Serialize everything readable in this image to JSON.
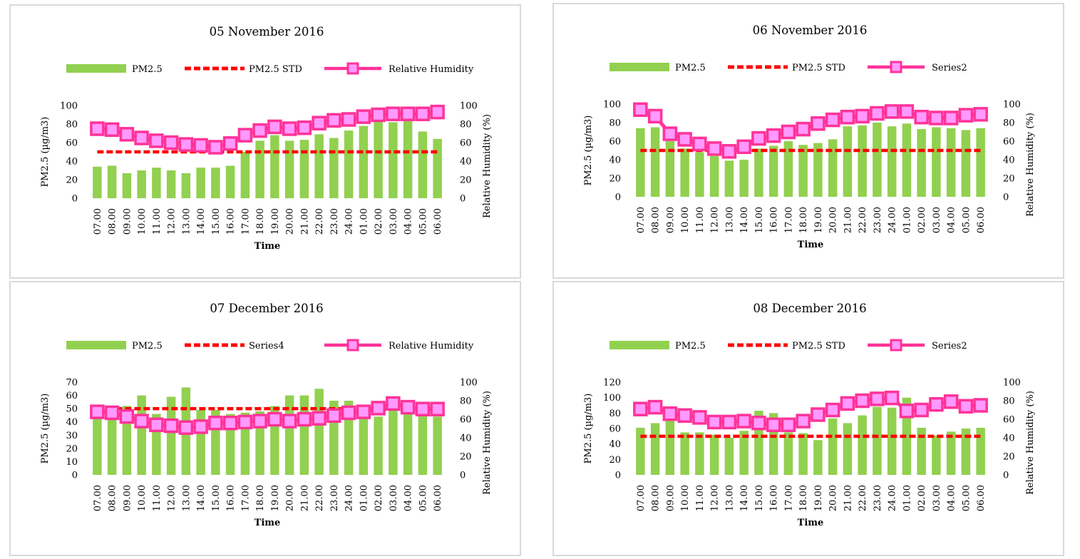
{
  "colors": {
    "bar": "#92d050",
    "std": "#ff0000",
    "humidity_line": "#ff3399",
    "humidity_marker_fill": "#ff99ff",
    "panel_border": "#d9d9d9"
  },
  "chart_data": [
    {
      "type": "bar",
      "title": "05 November 2016",
      "xlabel": "Time",
      "ylabel": "PM2.5 (µg/m3)",
      "y2label": "Relative Humidity (%)",
      "ylim": [
        0,
        100
      ],
      "yticks": [
        0,
        20,
        40,
        60,
        80,
        100
      ],
      "y2lim": [
        0,
        100
      ],
      "y2ticks": [
        0,
        20,
        40,
        60,
        80,
        100
      ],
      "legend_position": "top",
      "categories": [
        "07.00",
        "08.00",
        "09.00",
        "10.00",
        "11.00",
        "12.00",
        "13.00",
        "14.00",
        "15.00",
        "16.00",
        "17.00",
        "18.00",
        "19.00",
        "20.00",
        "21.00",
        "22.00",
        "23.00",
        "24.00",
        "01.00",
        "02.00",
        "03.00",
        "04.00",
        "05.00",
        "06.00"
      ],
      "series": [
        {
          "name": "PM2.5",
          "kind": "bar",
          "axis": "left",
          "values": [
            34,
            35,
            27,
            30,
            33,
            30,
            27,
            33,
            33,
            35,
            50,
            62,
            68,
            62,
            63,
            69,
            65,
            73,
            78,
            83,
            82,
            84,
            72,
            64
          ]
        },
        {
          "name": "PM2.5 STD",
          "kind": "dashed-line",
          "axis": "left",
          "values": [
            50,
            50,
            50,
            50,
            50,
            50,
            50,
            50,
            50,
            50,
            50,
            50,
            50,
            50,
            50,
            50,
            50,
            50,
            50,
            50,
            50,
            50,
            50,
            50
          ]
        },
        {
          "name": "Relative Humidity",
          "kind": "line-marker",
          "axis": "right",
          "values": [
            75,
            74,
            69,
            65,
            62,
            60,
            58,
            57,
            55,
            59,
            68,
            73,
            77,
            75,
            76,
            81,
            84,
            85,
            88,
            90,
            91,
            91,
            91,
            93
          ]
        }
      ]
    },
    {
      "type": "bar",
      "title": "06 November 2016",
      "xlabel": "Time",
      "ylabel": "PM2.5 (µg/m3)",
      "y2label": "Relative Humidity (%)",
      "ylim": [
        0,
        100
      ],
      "yticks": [
        0,
        20,
        40,
        60,
        80,
        100
      ],
      "y2lim": [
        0,
        100
      ],
      "y2ticks": [
        0,
        20,
        40,
        60,
        80,
        100
      ],
      "legend_position": "top",
      "categories": [
        "07.00",
        "08.00",
        "09.00",
        "10.00",
        "11.00",
        "12.00",
        "13.00",
        "14.00",
        "15.00",
        "16.00",
        "17.00",
        "18.00",
        "19.00",
        "20.00",
        "21.00",
        "22.00",
        "23.00",
        "24.00",
        "01.00",
        "02.00",
        "03.00",
        "04.00",
        "05.00",
        "06.00"
      ],
      "series": [
        {
          "name": "PM2.5",
          "kind": "bar",
          "axis": "left",
          "values": [
            74,
            75,
            60,
            52,
            48,
            44,
            39,
            40,
            52,
            55,
            60,
            56,
            58,
            62,
            76,
            77,
            80,
            76,
            79,
            73,
            75,
            74,
            72,
            74
          ]
        },
        {
          "name": "PM2.5 STD",
          "kind": "dashed-line",
          "axis": "left",
          "values": [
            50,
            50,
            50,
            50,
            50,
            50,
            50,
            50,
            50,
            50,
            50,
            50,
            50,
            50,
            50,
            50,
            50,
            50,
            50,
            50,
            50,
            50,
            50,
            50
          ]
        },
        {
          "name": "Series2",
          "kind": "line-marker",
          "axis": "right",
          "values": [
            94,
            87,
            68,
            62,
            57,
            52,
            49,
            54,
            63,
            66,
            70,
            73,
            79,
            83,
            86,
            87,
            90,
            92,
            92,
            86,
            85,
            85,
            88,
            89
          ]
        }
      ]
    },
    {
      "type": "bar",
      "title": "07 December 2016",
      "xlabel": "Time",
      "ylabel": "PM2.5 (µg/m3)",
      "y2label": "Relative Humidity (%)",
      "ylim": [
        0,
        70
      ],
      "yticks": [
        0,
        10,
        20,
        30,
        40,
        50,
        60,
        70
      ],
      "y2lim": [
        0,
        100
      ],
      "y2ticks": [
        0,
        20,
        40,
        60,
        80,
        100
      ],
      "legend_position": "top",
      "categories": [
        "07.00",
        "08.00",
        "09.00",
        "10.00",
        "11.00",
        "12.00",
        "13.00",
        "14.00",
        "15.00",
        "16.00",
        "17.00",
        "18.00",
        "19.00",
        "20.00",
        "21.00",
        "22.00",
        "23.00",
        "24.00",
        "01.00",
        "02.00",
        "03.00",
        "04.00",
        "05.00",
        "06.00"
      ],
      "series": [
        {
          "name": "PM2.5",
          "kind": "bar",
          "axis": "left",
          "values": [
            46,
            45,
            52,
            60,
            46,
            59,
            66,
            49,
            49,
            46,
            47,
            48,
            52,
            60,
            60,
            65,
            56,
            56,
            45,
            44,
            50,
            47,
            45,
            44
          ]
        },
        {
          "name": "Series4",
          "kind": "dashed-line",
          "axis": "left",
          "values": [
            50,
            50,
            50,
            50,
            50,
            50,
            50,
            50,
            50,
            50,
            50,
            50,
            50,
            50,
            50,
            50,
            50,
            50,
            50,
            50,
            50,
            50,
            50,
            50
          ]
        },
        {
          "name": "Relative Humidity",
          "kind": "line-marker",
          "axis": "right",
          "values": [
            68,
            67,
            63,
            58,
            54,
            53,
            51,
            52,
            56,
            56,
            57,
            58,
            60,
            58,
            60,
            61,
            64,
            67,
            68,
            72,
            77,
            73,
            71,
            71
          ]
        }
      ]
    },
    {
      "type": "bar",
      "title": "08 December 2016",
      "xlabel": "Time",
      "ylabel": "PM2.5 (µg/m3)",
      "y2label": "Relative Humidity (%)",
      "ylim": [
        0,
        120
      ],
      "yticks": [
        0,
        20,
        40,
        60,
        80,
        100,
        120
      ],
      "y2lim": [
        0,
        100
      ],
      "y2ticks": [
        0,
        20,
        40,
        60,
        80,
        100
      ],
      "legend_position": "top",
      "categories": [
        "07.00",
        "08.00",
        "09.00",
        "10.00",
        "11.00",
        "12.00",
        "13.00",
        "14.00",
        "15.00",
        "16.00",
        "17.00",
        "18.00",
        "19.00",
        "20.00",
        "21.00",
        "22.00",
        "23.00",
        "24.00",
        "01.00",
        "02.00",
        "03.00",
        "04.00",
        "05.00",
        "06.00"
      ],
      "series": [
        {
          "name": "PM2.5",
          "kind": "bar",
          "axis": "left",
          "values": [
            61,
            67,
            70,
            55,
            55,
            52,
            48,
            57,
            83,
            80,
            55,
            54,
            45,
            73,
            67,
            77,
            88,
            87,
            100,
            61,
            51,
            56,
            60,
            61
          ]
        },
        {
          "name": "PM2.5 STD",
          "kind": "dashed-line",
          "axis": "left",
          "values": [
            50,
            50,
            50,
            50,
            50,
            50,
            50,
            50,
            50,
            50,
            50,
            50,
            50,
            50,
            50,
            50,
            50,
            50,
            50,
            50,
            50,
            50,
            50,
            50
          ]
        },
        {
          "name": "Series2",
          "kind": "line-marker",
          "axis": "right",
          "values": [
            71,
            73,
            66,
            64,
            62,
            57,
            57,
            58,
            56,
            54,
            54,
            58,
            65,
            70,
            77,
            80,
            82,
            83,
            69,
            70,
            76,
            79,
            74,
            75
          ]
        }
      ]
    }
  ]
}
